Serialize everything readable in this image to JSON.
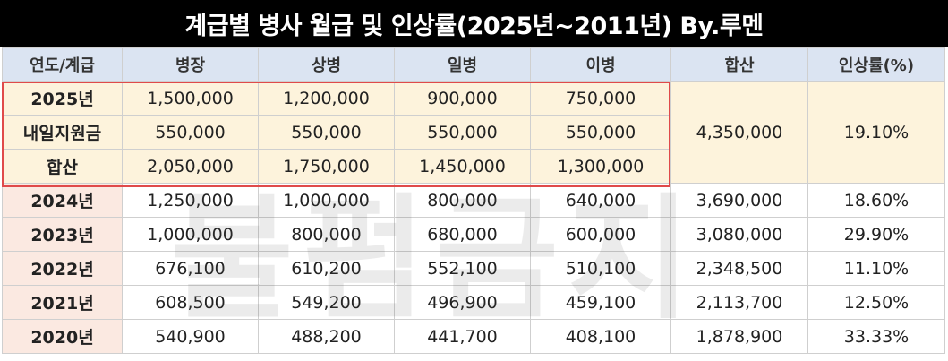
{
  "title": "계급별 병사 월급 및 인상률(2025년~2011년) By.루멘",
  "header": [
    "연도/계급",
    "병장",
    "상병",
    "일병",
    "이병",
    "합산",
    "인상률(%)"
  ],
  "highlight": {
    "rows": [
      [
        "2025년",
        "1,500,000",
        "1,200,000",
        "900,000",
        "750,000"
      ],
      [
        "내일지원금",
        "550,000",
        "550,000",
        "550,000",
        "550,000"
      ],
      [
        "합산",
        "2,050,000",
        "1,750,000",
        "1,450,000",
        "1,300,000"
      ]
    ],
    "total": "4,350,000",
    "rate": "19.10%"
  },
  "rows": [
    [
      "2024년",
      "1,250,000",
      "1,000,000",
      "800,000",
      "640,000",
      "3,690,000",
      "18.60%"
    ],
    [
      "2023년",
      "1,000,000",
      "800,000",
      "680,000",
      "600,000",
      "3,080,000",
      "29.90%"
    ],
    [
      "2022년",
      "676,100",
      "610,200",
      "552,100",
      "510,100",
      "2,348,500",
      "11.10%"
    ],
    [
      "2021년",
      "608,500",
      "549,200",
      "496,900",
      "459,100",
      "2,113,700",
      "12.50%"
    ],
    [
      "2020년",
      "540,900",
      "488,200",
      "441,700",
      "408,100",
      "1,878,900",
      "33.33%"
    ]
  ],
  "watermark": "불펌금지"
}
